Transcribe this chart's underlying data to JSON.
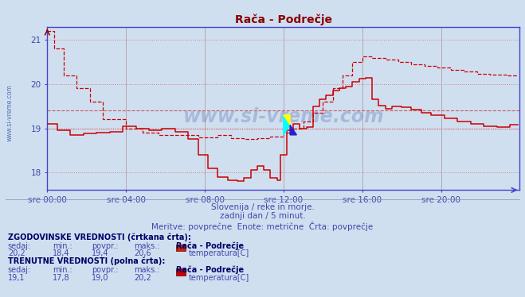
{
  "title": "Rača - Podrečje",
  "title_color": "#8B0000",
  "bg_color": "#d0dff0",
  "plot_bg_color": "#d0dff0",
  "fig_bg_color": "#d0dff0",
  "xlabel_color": "#4444aa",
  "ylabel_color": "#4444aa",
  "grid_color": "#b0a0a0",
  "axis_color": "#4444cc",
  "xlim": [
    0,
    288
  ],
  "ylim": [
    17.6,
    21.3
  ],
  "yticks": [
    18,
    19,
    20,
    21
  ],
  "xtick_labels": [
    "sre 00:00",
    "sre 04:00",
    "sre 08:00",
    "sre 12:00",
    "sre 16:00",
    "sre 20:00"
  ],
  "xtick_pos": [
    0,
    48,
    96,
    144,
    192,
    240
  ],
  "subtitle1": "Slovenija / reke in morje.",
  "subtitle2": "zadnji dan / 5 minut.",
  "subtitle3": "Meritve: povprečne  Enote: metrične  Črta: povprečje",
  "subtitle_color": "#4444aa",
  "hist_label": "ZGODOVINSKE VREDNOSTI (črtkana črta):",
  "curr_label": "TRENUTNE VREDNOSTI (polna črta):",
  "col_headers": [
    "sedaj:",
    "min.:",
    "povpr.:",
    "maks.:"
  ],
  "hist_values": [
    "20,2",
    "18,4",
    "19,4",
    "20,6"
  ],
  "curr_values": [
    "19,1",
    "17,8",
    "19,0",
    "20,2"
  ],
  "station_name": "Rača - Podrečje",
  "param_label": "temperatura[C]",
  "line_color": "#cc0000",
  "hline_hist_avg": 19.4,
  "hline_curr_avg": 19.0,
  "watermark": "www.si-vreme.com",
  "watermark_color": "#1a3a8a",
  "watermark_alpha": 0.22
}
